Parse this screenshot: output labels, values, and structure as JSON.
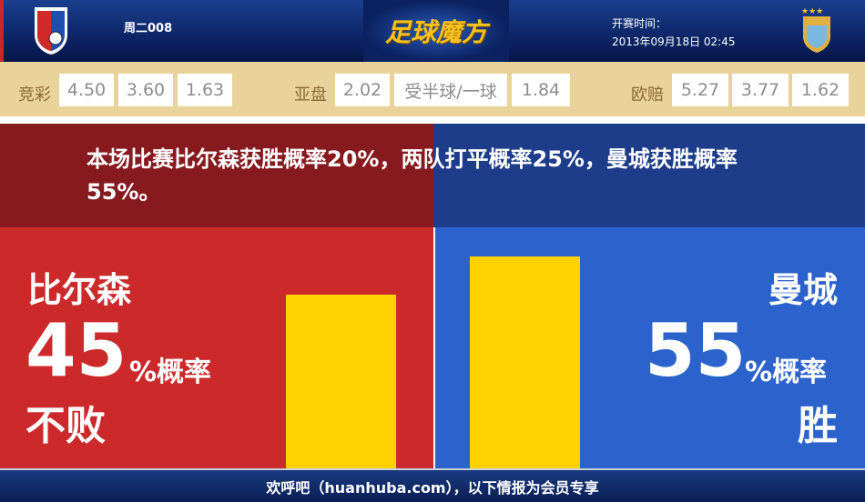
{
  "header": {
    "match_no": "周二008",
    "brand": "足球魔方",
    "kickoff_label": "开赛时间：",
    "kickoff_time": "2013年09月18日 02:45",
    "home_logo": "PLZEN FC VIKTORIA",
    "away_logo": "manchester-city-crest"
  },
  "odds": {
    "jingcai": {
      "label": "竞彩",
      "values": [
        "4.50",
        "3.60",
        "1.63"
      ]
    },
    "yapan": {
      "label": "亚盘",
      "values": [
        "2.02",
        "受半球/一球",
        "1.84"
      ]
    },
    "ouzhi": {
      "label": "欧赔",
      "values": [
        "5.27",
        "3.77",
        "1.62"
      ]
    }
  },
  "summary": "本场比赛比尔森获胜概率20%，两队打平概率25%，曼城获胜概率55%。",
  "home": {
    "name": "比尔森",
    "pct": "45",
    "pct_label": "%概率",
    "result": "不败",
    "value": 45,
    "color": "#cc292b"
  },
  "away": {
    "name": "曼城",
    "pct": "55",
    "pct_label": "%概率",
    "result": "胜",
    "value": 55,
    "color": "#2b62cc"
  },
  "bar_color": "#ffd200",
  "footer": "欢呼吧（huanhuba.com），以下情报为会员专享"
}
